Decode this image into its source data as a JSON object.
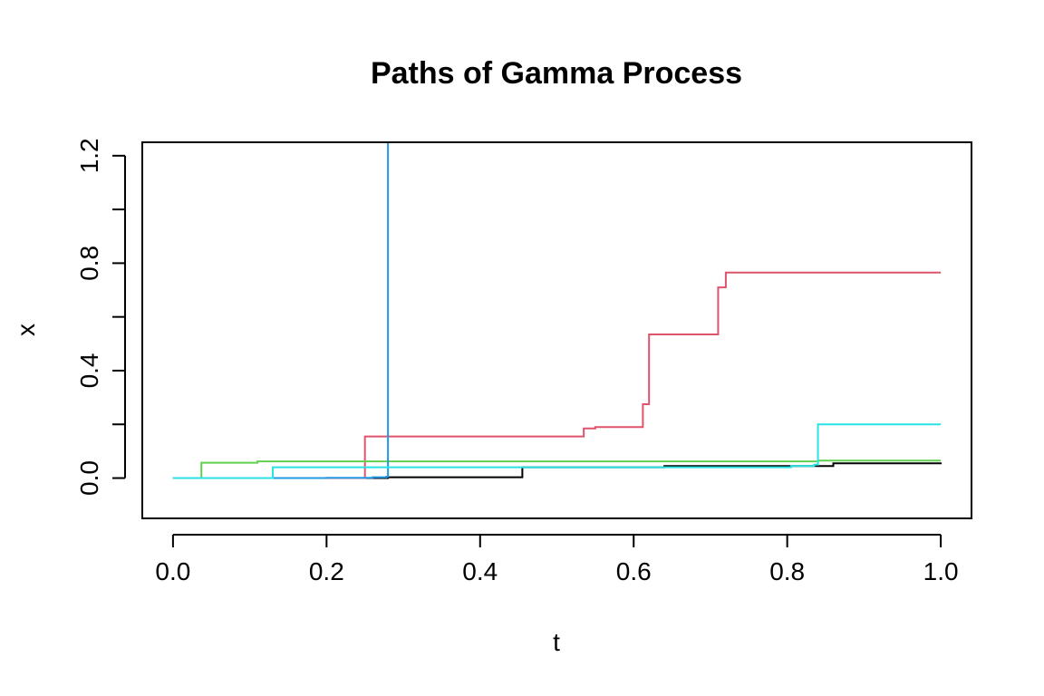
{
  "chart_data": {
    "type": "line",
    "title": "Paths of Gamma Process",
    "xlabel": "t",
    "ylabel": "x",
    "xlim": [
      -0.04,
      1.04
    ],
    "ylim": [
      -0.15,
      1.25
    ],
    "x_ticks": [
      0.0,
      0.2,
      0.4,
      0.6,
      0.8,
      1.0
    ],
    "x_tick_labels": [
      "0.0",
      "0.2",
      "0.4",
      "0.6",
      "0.8",
      "1.0"
    ],
    "y_ticks": [
      0.0,
      0.2,
      0.4,
      0.6,
      0.8,
      1.0,
      1.2
    ],
    "y_tick_labels": [
      "0.0",
      "",
      "0.4",
      "",
      "0.8",
      "",
      "1.2"
    ],
    "grid": false,
    "legend": "none",
    "step": "post",
    "series": [
      {
        "color": "#000000",
        "x": [
          0.0,
          0.28,
          0.455,
          0.64,
          0.86,
          1.0
        ],
        "y": [
          0.0,
          0.003,
          0.04,
          0.045,
          0.055,
          0.058
        ]
      },
      {
        "color": "#DF536B",
        "x": [
          0.0,
          0.25,
          0.535,
          0.55,
          0.612,
          0.62,
          0.71,
          0.72,
          1.0
        ],
        "y": [
          0.0,
          0.155,
          0.185,
          0.19,
          0.275,
          0.535,
          0.71,
          0.765,
          0.765
        ]
      },
      {
        "color": "#61D04F",
        "x": [
          0.0,
          0.037,
          0.11,
          0.84,
          1.0
        ],
        "y": [
          0.0,
          0.057,
          0.062,
          0.065,
          0.065
        ]
      },
      {
        "color": "#2297E6",
        "x": [
          0.0,
          0.2,
          0.26,
          0.278,
          0.28
        ],
        "y": [
          0.0,
          0.001,
          0.003,
          0.005,
          1.3
        ]
      },
      {
        "color": "#28E2E5",
        "x": [
          0.0,
          0.13,
          0.805,
          0.835,
          0.84,
          1.0
        ],
        "y": [
          0.0,
          0.04,
          0.045,
          0.05,
          0.2,
          0.2
        ]
      }
    ]
  }
}
